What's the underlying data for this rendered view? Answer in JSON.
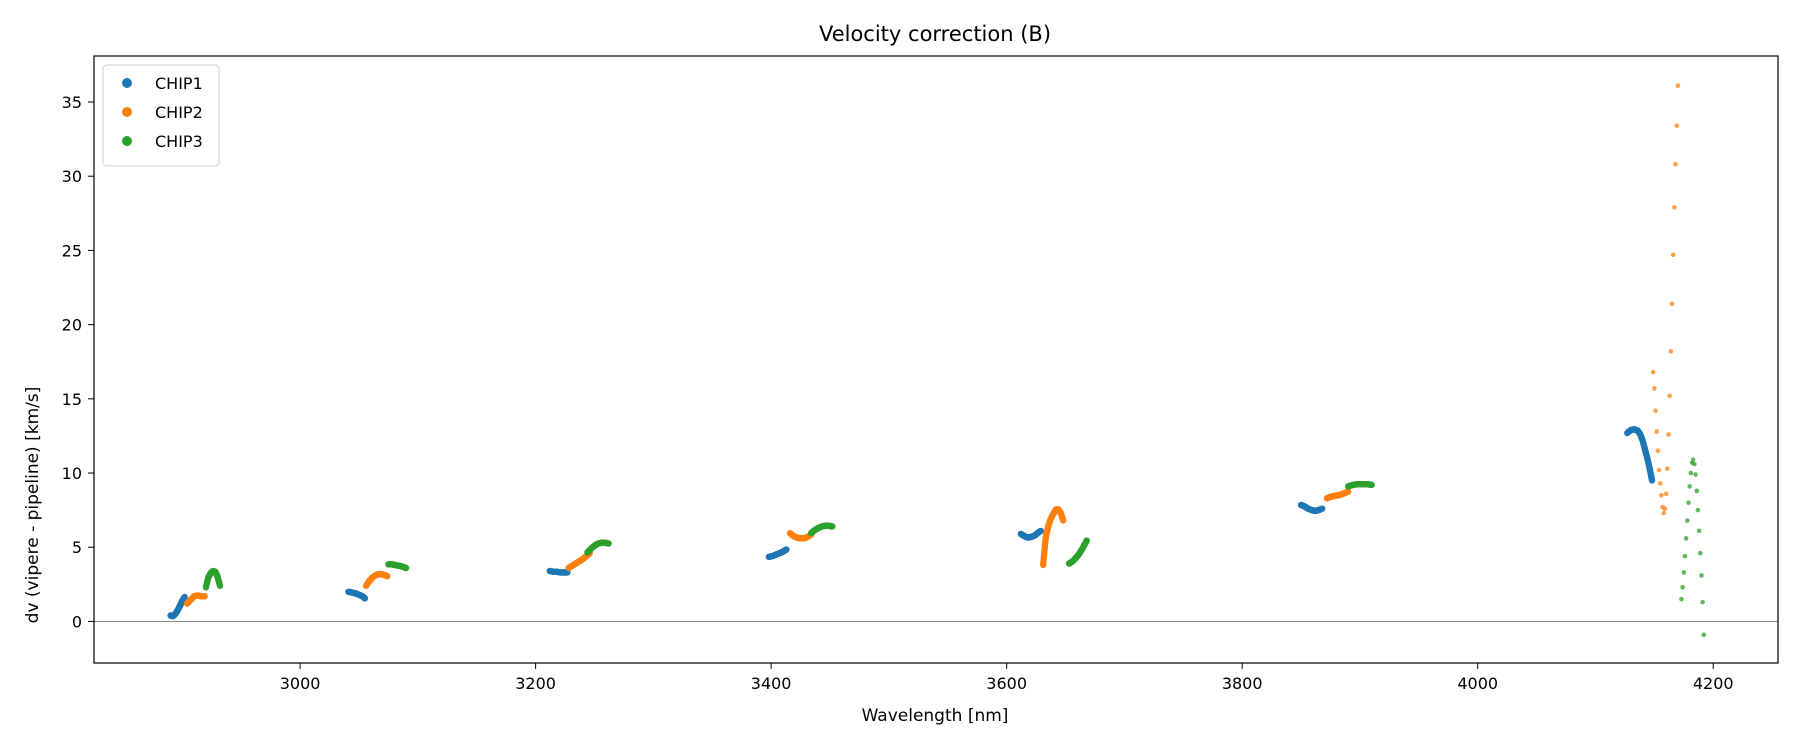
{
  "chart_data": {
    "type": "scatter",
    "title": "Velocity correction (B)",
    "xlabel": "Wavelength [nm]",
    "ylabel": "dv (vipere - pipeline) [km/s]",
    "xlim": [
      2825,
      4255
    ],
    "ylim": [
      -2.8,
      38.1
    ],
    "xticks": [
      3000,
      3200,
      3400,
      3600,
      3800,
      4000,
      4200
    ],
    "yticks": [
      0,
      5,
      10,
      15,
      20,
      25,
      30,
      35
    ],
    "grid": false,
    "reference_line_y": 0,
    "legend_position": "top-left",
    "series": [
      {
        "name": "CHIP1",
        "color": "#1f77b4",
        "segments": [
          {
            "x": [
              2890,
              2892,
              2894,
              2896,
              2898,
              2900,
              2902
            ],
            "y": [
              0.4,
              0.35,
              0.5,
              0.75,
              1.05,
              1.4,
              1.65
            ]
          },
          {
            "x": [
              3041,
              3044,
              3047,
              3050,
              3053,
              3055
            ],
            "y": [
              2.0,
              1.95,
              1.9,
              1.8,
              1.7,
              1.55
            ]
          },
          {
            "x": [
              3212,
              3215,
              3218,
              3221,
              3224,
              3227
            ],
            "y": [
              3.4,
              3.35,
              3.35,
              3.3,
              3.3,
              3.3
            ]
          },
          {
            "x": [
              3398,
              3401,
              3404,
              3407,
              3410,
              3413
            ],
            "y": [
              4.35,
              4.4,
              4.5,
              4.6,
              4.7,
              4.85
            ]
          },
          {
            "x": [
              3612,
              3615,
              3618,
              3621,
              3624,
              3627,
              3629
            ],
            "y": [
              5.9,
              5.75,
              5.65,
              5.7,
              5.8,
              6.0,
              6.1
            ]
          },
          {
            "x": [
              3850,
              3853,
              3856,
              3859,
              3862,
              3865,
              3868
            ],
            "y": [
              7.85,
              7.75,
              7.6,
              7.5,
              7.45,
              7.5,
              7.6
            ]
          },
          {
            "x": [
              4127,
              4130,
              4133,
              4136,
              4138,
              4140,
              4142,
              4144,
              4146,
              4148
            ],
            "y": [
              12.7,
              12.9,
              12.95,
              12.85,
              12.6,
              12.2,
              11.6,
              11.0,
              10.3,
              9.5
            ]
          }
        ]
      },
      {
        "name": "CHIP2",
        "color": "#ff7f0e",
        "segments": [
          {
            "x": [
              2904,
              2907,
              2910,
              2913,
              2916,
              2919
            ],
            "y": [
              1.2,
              1.45,
              1.7,
              1.75,
              1.7,
              1.7
            ]
          },
          {
            "x": [
              3056,
              3059,
              3062,
              3065,
              3068,
              3071,
              3074
            ],
            "y": [
              2.4,
              2.75,
              3.0,
              3.15,
              3.2,
              3.15,
              3.05
            ]
          },
          {
            "x": [
              3228,
              3231,
              3234,
              3237,
              3240,
              3243,
              3246
            ],
            "y": [
              3.6,
              3.75,
              3.9,
              4.05,
              4.2,
              4.4,
              4.6
            ]
          },
          {
            "x": [
              3416,
              3419,
              3422,
              3425,
              3428,
              3431,
              3434
            ],
            "y": [
              5.95,
              5.75,
              5.65,
              5.6,
              5.6,
              5.7,
              5.85
            ]
          },
          {
            "x": [
              3631,
              3632,
              3633,
              3634,
              3636,
              3638,
              3640,
              3642,
              3644,
              3646,
              3648
            ],
            "y": [
              3.8,
              4.7,
              5.5,
              6.0,
              6.6,
              7.0,
              7.3,
              7.55,
              7.55,
              7.3,
              6.8
            ]
          },
          {
            "x": [
              3872,
              3875,
              3878,
              3881,
              3884,
              3887,
              3890
            ],
            "y": [
              8.3,
              8.4,
              8.45,
              8.5,
              8.55,
              8.65,
              8.75
            ]
          },
          {
            "x": [
              4149,
              4150,
              4151,
              4152,
              4153,
              4154,
              4155,
              4156,
              4157,
              4158,
              4159,
              4160,
              4161,
              4162,
              4163,
              4164,
              4165,
              4166,
              4167,
              4168,
              4169,
              4170
            ],
            "y": [
              16.8,
              15.7,
              14.2,
              12.8,
              11.5,
              10.2,
              9.3,
              8.5,
              7.7,
              7.3,
              7.6,
              8.6,
              10.3,
              12.6,
              15.2,
              18.2,
              21.4,
              24.7,
              27.9,
              30.8,
              33.4,
              36.1
            ]
          }
        ]
      },
      {
        "name": "CHIP3",
        "color": "#2ca02c",
        "segments": [
          {
            "x": [
              2920,
              2922,
              2924,
              2926,
              2928,
              2930,
              2932
            ],
            "y": [
              2.3,
              2.95,
              3.25,
              3.4,
              3.35,
              3.0,
              2.4
            ]
          },
          {
            "x": [
              3075,
              3078,
              3081,
              3084,
              3087,
              3090
            ],
            "y": [
              3.85,
              3.85,
              3.8,
              3.75,
              3.7,
              3.6
            ]
          },
          {
            "x": [
              3244,
              3247,
              3250,
              3253,
              3256,
              3259,
              3262
            ],
            "y": [
              4.65,
              4.9,
              5.1,
              5.25,
              5.3,
              5.3,
              5.25
            ]
          },
          {
            "x": [
              3434,
              3437,
              3440,
              3443,
              3446,
              3449,
              3452
            ],
            "y": [
              5.95,
              6.15,
              6.3,
              6.4,
              6.45,
              6.45,
              6.4
            ]
          },
          {
            "x": [
              3653,
              3656,
              3659,
              3662,
              3665,
              3668
            ],
            "y": [
              3.9,
              4.05,
              4.3,
              4.6,
              5.0,
              5.45
            ]
          },
          {
            "x": [
              3890,
              3894,
              3898,
              3902,
              3906,
              3910
            ],
            "y": [
              9.1,
              9.2,
              9.25,
              9.25,
              9.25,
              9.2
            ]
          },
          {
            "x": [
              4173,
              4174,
              4175,
              4176,
              4177,
              4178,
              4179,
              4180,
              4181,
              4182,
              4183,
              4184,
              4185,
              4186,
              4187,
              4188,
              4189,
              4190,
              4191,
              4192
            ],
            "y": [
              1.5,
              2.3,
              3.3,
              4.4,
              5.6,
              6.8,
              8.0,
              9.1,
              10.0,
              10.7,
              10.9,
              10.6,
              9.9,
              8.8,
              7.5,
              6.1,
              4.6,
              3.1,
              1.3,
              -0.9
            ]
          }
        ]
      }
    ]
  }
}
